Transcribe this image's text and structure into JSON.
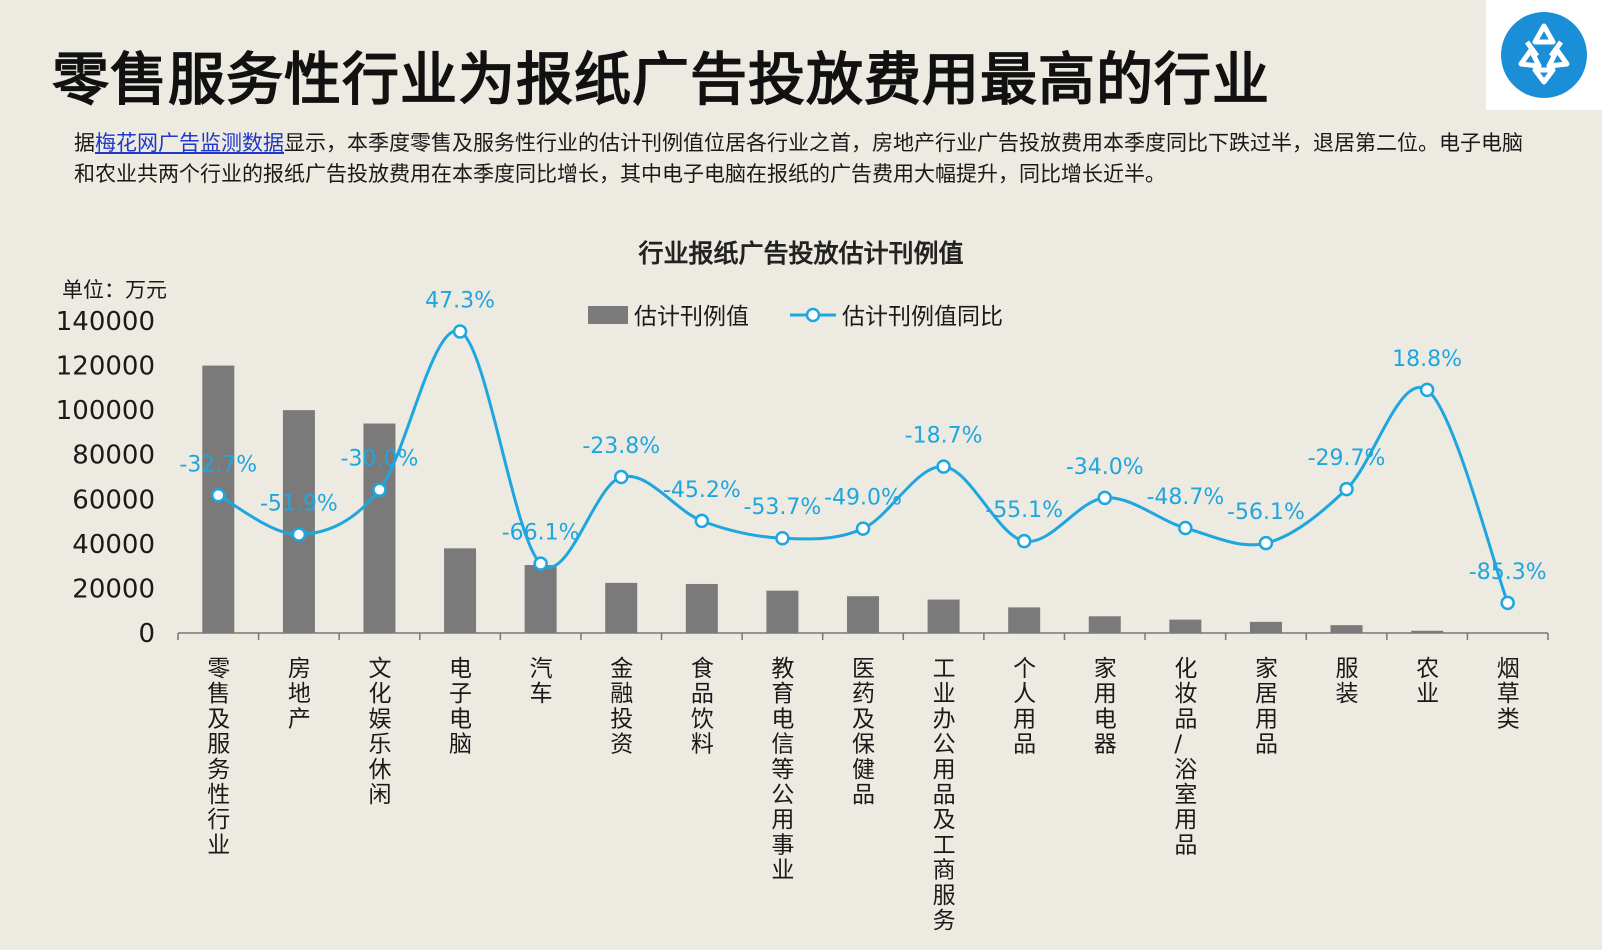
{
  "page": {
    "title": "零售服务性行业为报纸广告投放费用最高的行业",
    "description_link": "梅花网广告监测数据",
    "description_prefix": "据",
    "description_rest": "显示，本季度零售及服务性行业的估计刊例值位居各行业之首，房地产行业广告投放费用本季度同比下跌过半，退居第二位。电子电脑和农业共两个行业的报纸广告投放费用在本季度同比增长，其中电子电脑在报纸的广告费用大幅提升，同比增长近半。",
    "logo_icon": "meihua-flower-logo-icon"
  },
  "chart_data": {
    "type": "bar",
    "title": "行业报纸广告投放估计刊例值",
    "unit_label": "单位：万元",
    "categories": [
      "零售及服务性行业",
      "房地产",
      "文化娱乐休闲",
      "电子电脑",
      "汽车",
      "金融投资",
      "食品饮料",
      "教育电信等公用事业",
      "医药及保健品",
      "工业办公用品及工商服务",
      "个人用品",
      "家用电器",
      "化妆品/浴室用品",
      "家居用品",
      "服装",
      "农业",
      "烟草类"
    ],
    "series": [
      {
        "name": "估计刊例值",
        "type": "bar",
        "color": "#7a7a7a",
        "values": [
          120000,
          100000,
          94000,
          38000,
          30500,
          22500,
          22000,
          19000,
          16500,
          15000,
          11500,
          7500,
          6000,
          5000,
          3500,
          1000,
          0
        ]
      },
      {
        "name": "估计刊例值同比",
        "type": "line",
        "color": "#1ea6e0",
        "values": [
          -32.7,
          -51.9,
          -30.0,
          47.3,
          -66.1,
          -23.8,
          -45.2,
          -53.7,
          -49.0,
          -18.7,
          -55.1,
          -34.0,
          -48.7,
          -56.1,
          -29.7,
          18.8,
          -85.3
        ],
        "labels": [
          "-32.7%",
          "-51.9%",
          "-30.0%",
          "47.3%",
          "-66.1%",
          "-23.8%",
          "-45.2%",
          "-53.7%",
          "-49.0%",
          "-18.7%",
          "-55.1%",
          "-34.0%",
          "-48.7%",
          "-56.1%",
          "-29.7%",
          "18.8%",
          "-85.3%"
        ]
      }
    ],
    "y_ticks": [
      "0",
      "20000",
      "40000",
      "60000",
      "80000",
      "100000",
      "120000",
      "140000"
    ],
    "ylim": [
      0,
      140000
    ],
    "line_ylim": [
      -100,
      50
    ],
    "legend_position": "top",
    "grid": false
  }
}
